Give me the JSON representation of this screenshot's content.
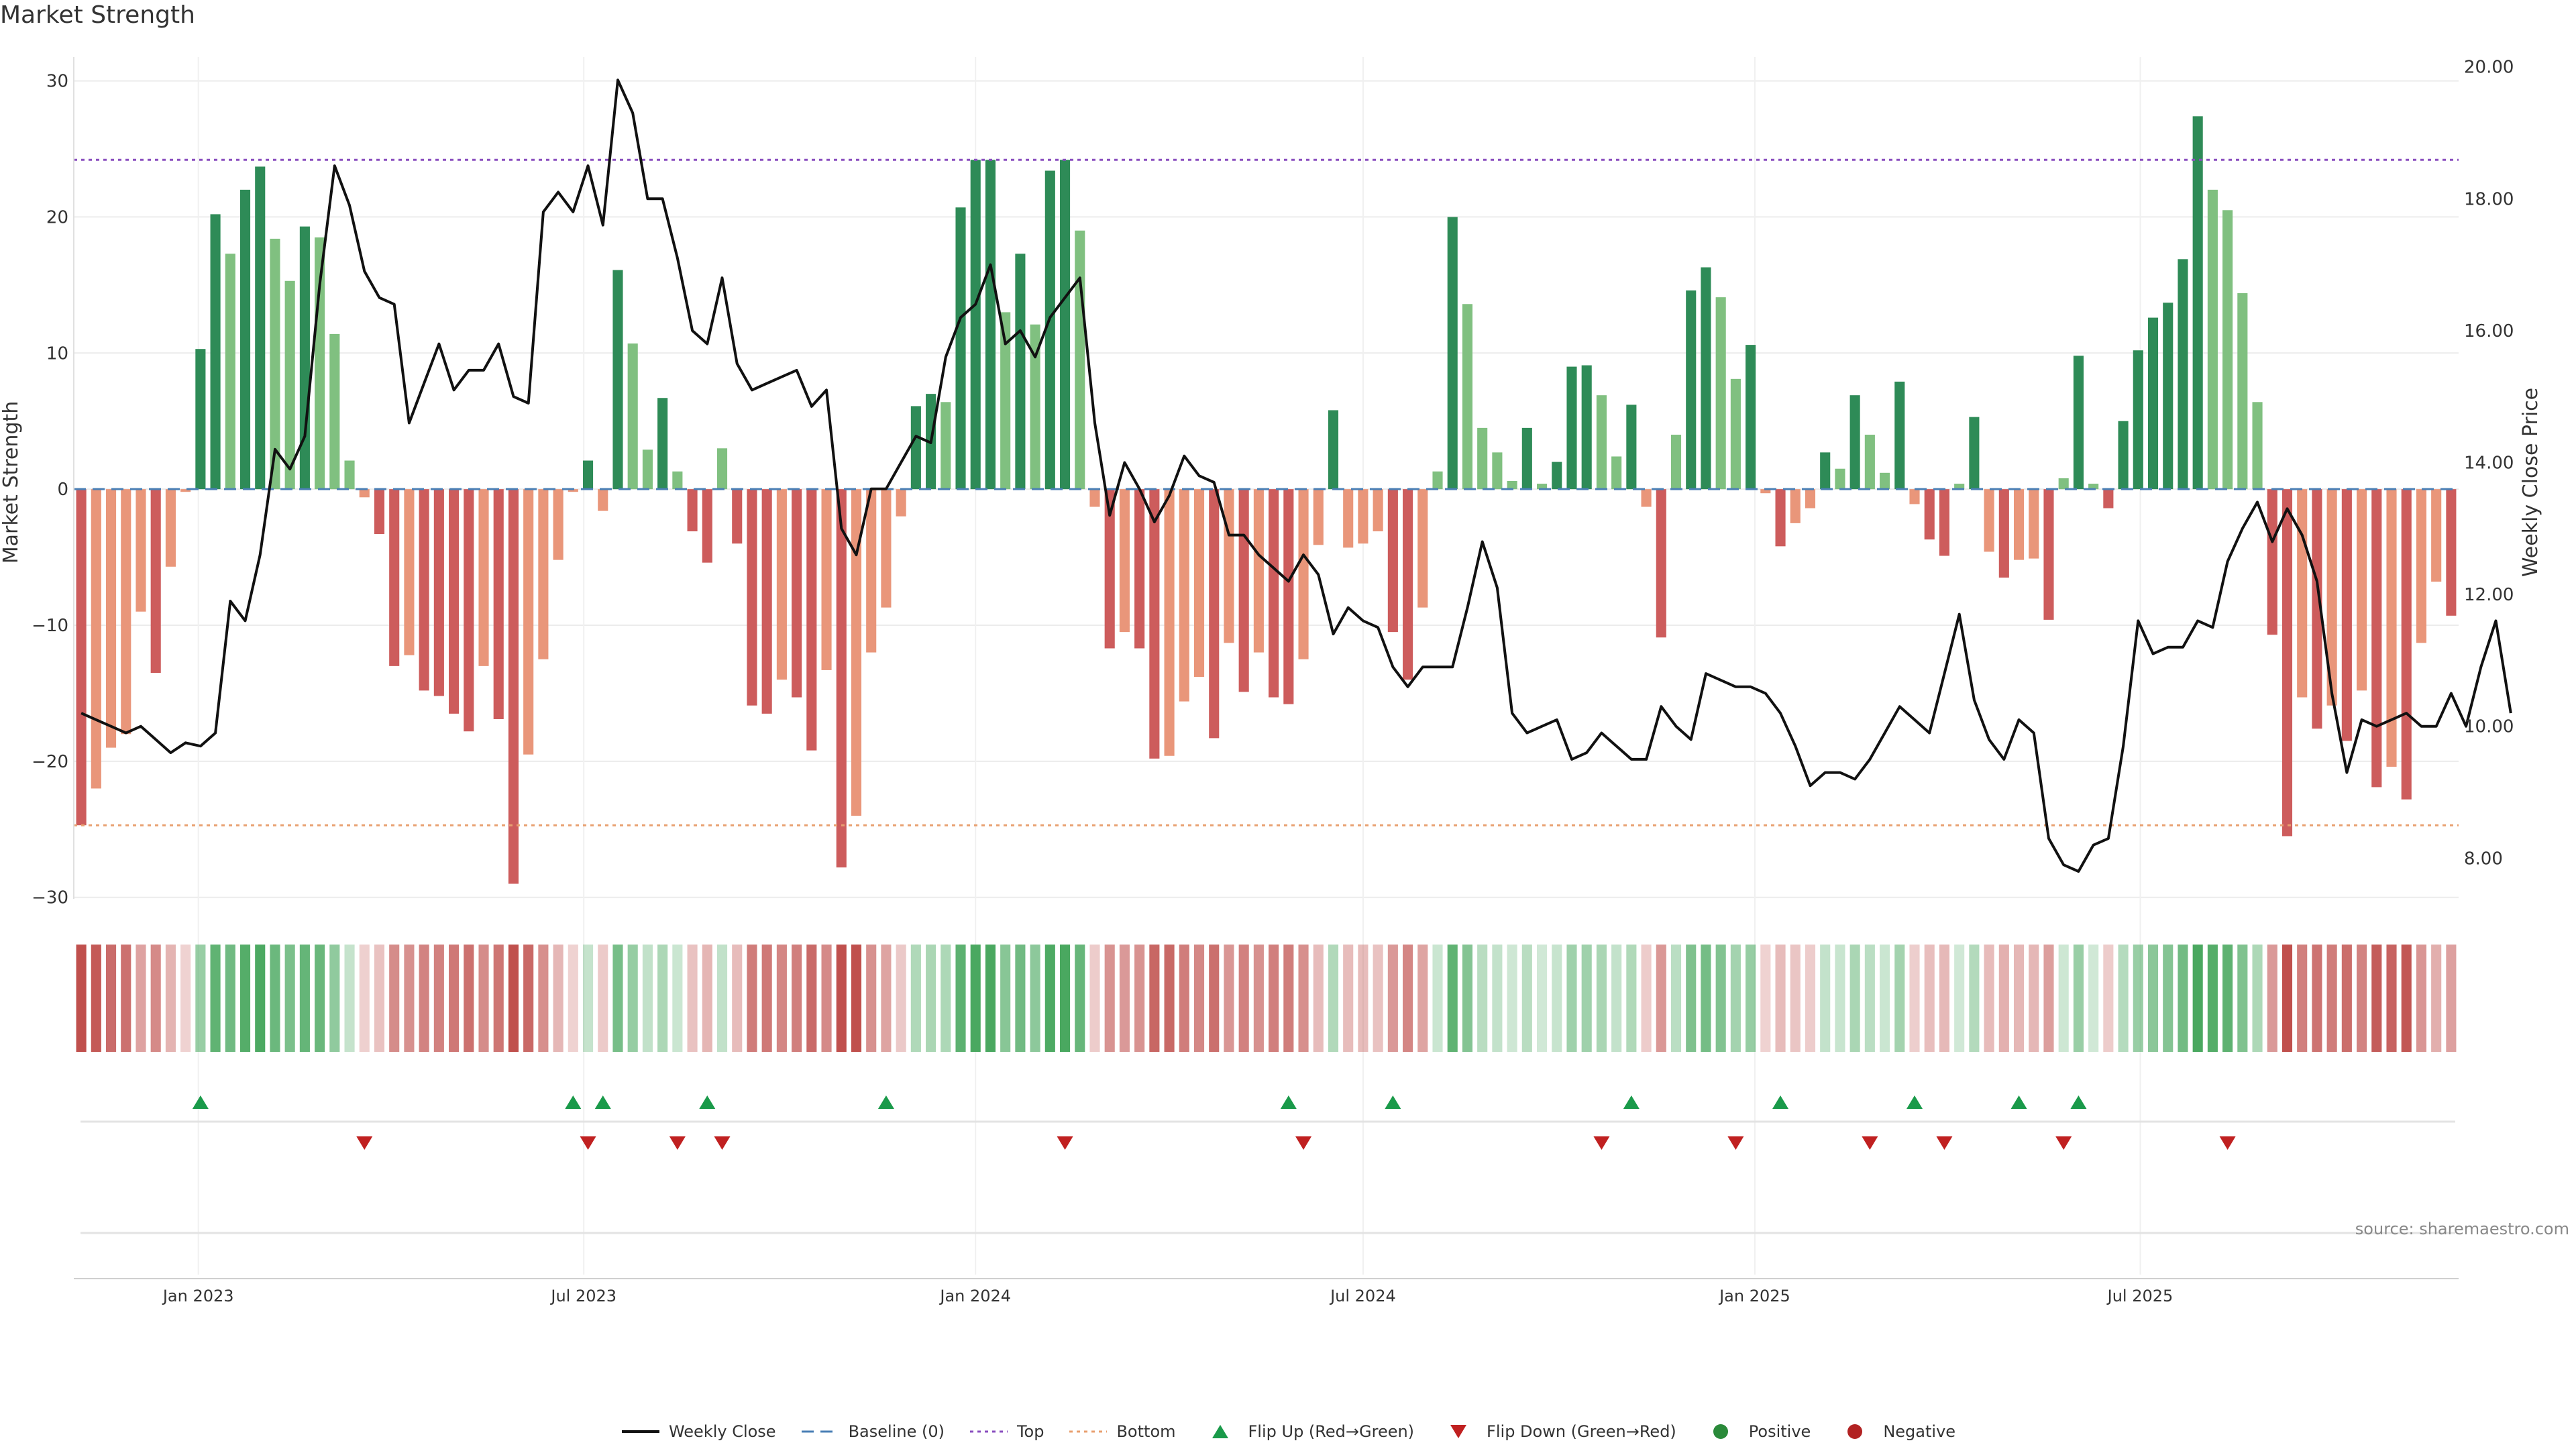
{
  "title": "Market Strength",
  "source": "source: sharemaestro.com",
  "colors": {
    "pos_dark": "#2e8b57",
    "pos_light": "#80c080",
    "neg_dark": "#cd5c5c",
    "neg_light": "#e9967a",
    "line": "#111111",
    "baseline": "#4a7fb5",
    "top": "#8a4fbf",
    "bottom": "#e8a070",
    "flip_up": "#1a9a4a",
    "flip_down": "#c02020"
  },
  "legend": [
    {
      "label": "Weekly Close",
      "type": "line"
    },
    {
      "label": "Baseline (0)",
      "type": "baseline"
    },
    {
      "label": "Top",
      "type": "top"
    },
    {
      "label": "Bottom",
      "type": "bottom"
    },
    {
      "label": "Flip Up (Red→Green)",
      "type": "flip_up"
    },
    {
      "label": "Flip Down (Green→Red)",
      "type": "flip_down"
    },
    {
      "label": "Positive",
      "type": "positive"
    },
    {
      "label": "Negative",
      "type": "negative"
    }
  ],
  "chart_data": {
    "type": "bar",
    "x_start": "2022-11-07",
    "x_interval": "weekly",
    "x_tick_labels": [
      "Jan 2023",
      "Jul 2023",
      "Jan 2024",
      "Jul 2024",
      "Jan 2025",
      "Jul 2025"
    ],
    "x_tick_dates": [
      "2023-01-01",
      "2023-07-01",
      "2024-01-01",
      "2024-07-01",
      "2025-01-01",
      "2025-07-01"
    ],
    "left_axis": {
      "label": "Market Strength",
      "ylim": [
        -31,
        32
      ],
      "ticks": [
        30,
        20,
        10,
        0,
        -10,
        -20,
        -30
      ]
    },
    "right_axis": {
      "label": "Weekly Close Price",
      "ylim": [
        7.2,
        20.2
      ],
      "ticks": [
        "20.00",
        "18.00",
        "16.00",
        "14.00",
        "12.00",
        "10.00",
        "8.00"
      ]
    },
    "top_level": 24.2,
    "bottom_level": -24.7,
    "series": [
      {
        "name": "Market Strength",
        "axis": "left",
        "values": [
          -24.7,
          -22,
          -19,
          -18,
          -9,
          -13.5,
          -5.7,
          -0.2,
          10.3,
          20.2,
          17.3,
          22,
          23.7,
          18.4,
          15.3,
          19.3,
          18.5,
          11.4,
          2.1,
          -0.6,
          -3.3,
          -13,
          -12.2,
          -14.8,
          -15.2,
          -16.5,
          -17.8,
          -13,
          -16.9,
          -29,
          -19.5,
          -12.5,
          -5.2,
          -0.2,
          2.1,
          -1.6,
          16.1,
          10.7,
          2.9,
          6.7,
          1.3,
          -3.1,
          -5.4,
          3,
          -4,
          -15.9,
          -16.5,
          -14,
          -15.3,
          -19.2,
          -13.3,
          -27.8,
          -24,
          -12,
          -8.7,
          -2,
          6.1,
          7,
          6.4,
          20.7,
          24.2,
          24.2,
          13,
          17.3,
          12.1,
          23.4,
          24.2,
          19,
          -1.3,
          -11.7,
          -10.5,
          -11.7,
          -19.8,
          -19.6,
          -15.6,
          -13.8,
          -18.3,
          -11.3,
          -14.9,
          -12,
          -15.3,
          -15.8,
          -12.5,
          -4.1,
          5.8,
          -4.3,
          -4,
          -3.1,
          -10.5,
          -14,
          -8.7,
          1.3,
          20,
          13.6,
          4.5,
          2.7,
          0.6,
          4.5,
          0.4,
          2,
          9,
          9.1,
          6.9,
          2.4,
          6.2,
          -1.3,
          -10.9,
          4,
          14.6,
          16.3,
          14.1,
          8.1,
          10.6,
          -0.3,
          -4.2,
          -2.5,
          -1.4,
          2.7,
          1.5,
          6.9,
          4,
          1.2,
          7.9,
          -1.1,
          -3.7,
          -4.9,
          0.4,
          5.3,
          -4.6,
          -6.5,
          -5.2,
          -5.1,
          -9.6,
          0.8,
          9.8,
          0.4,
          -1.4,
          5,
          10.2,
          12.6,
          13.7,
          16.9,
          27.4,
          22,
          20.5,
          14.4,
          6.4,
          -10.7,
          -25.5,
          -15.3,
          -17.6,
          -15.9,
          -18.5,
          -14.8,
          -21.9,
          -20.4,
          -22.8,
          -11.3,
          -6.8,
          -9.3
        ]
      },
      {
        "name": "Weekly Close",
        "axis": "right",
        "values": [
          10.2,
          10.1,
          10,
          9.9,
          10,
          9.8,
          9.6,
          9.75,
          9.7,
          9.9,
          11.9,
          11.6,
          12.6,
          14.2,
          13.9,
          14.4,
          16.7,
          18.5,
          17.9,
          16.9,
          16.5,
          16.4,
          14.6,
          15.2,
          15.8,
          15.1,
          15.4,
          15.4,
          15.8,
          15,
          14.9,
          17.8,
          18.1,
          17.8,
          18.5,
          17.6,
          19.8,
          19.3,
          18,
          18,
          17.1,
          16,
          15.8,
          16.8,
          15.5,
          15.1,
          15.2,
          15.3,
          15.4,
          14.85,
          15.1,
          13,
          12.6,
          13.6,
          13.6,
          14,
          14.4,
          14.3,
          15.6,
          16.2,
          16.4,
          17,
          15.8,
          16,
          15.6,
          16.2,
          16.5,
          16.8,
          14.6,
          13.2,
          14,
          13.6,
          13.1,
          13.5,
          14.1,
          13.8,
          13.7,
          12.9,
          12.9,
          12.6,
          12.4,
          12.2,
          12.6,
          12.3,
          11.4,
          11.8,
          11.6,
          11.5,
          10.9,
          10.6,
          10.9,
          10.9,
          10.9,
          11.8,
          12.8,
          12.1,
          10.2,
          9.9,
          10,
          10.1,
          9.5,
          9.6,
          9.9,
          9.7,
          9.5,
          9.5,
          10.3,
          10,
          9.8,
          10.8,
          10.7,
          10.6,
          10.6,
          10.5,
          10.2,
          9.7,
          9.1,
          9.3,
          9.3,
          9.2,
          9.5,
          9.9,
          10.3,
          10.1,
          9.9,
          10.8,
          11.7,
          10.4,
          9.8,
          9.5,
          10.1,
          9.9,
          8.3,
          7.9,
          7.8,
          8.2,
          8.3,
          9.7,
          11.6,
          11.1,
          11.2,
          11.2,
          11.6,
          11.5,
          12.5,
          13,
          13.4,
          12.8,
          13.3,
          12.9,
          12.2,
          10.5,
          9.3,
          10.1,
          10,
          10.1,
          10.2,
          10,
          10,
          10.5,
          10,
          10.9,
          11.6,
          10.2
        ]
      }
    ],
    "flip_up_weeks": [
      8,
      33,
      35,
      42,
      54,
      81,
      88,
      104,
      114,
      123,
      130,
      134
    ],
    "flip_down_weeks": [
      19,
      34,
      40,
      43,
      66,
      82,
      102,
      111,
      120,
      125,
      133,
      144
    ]
  }
}
